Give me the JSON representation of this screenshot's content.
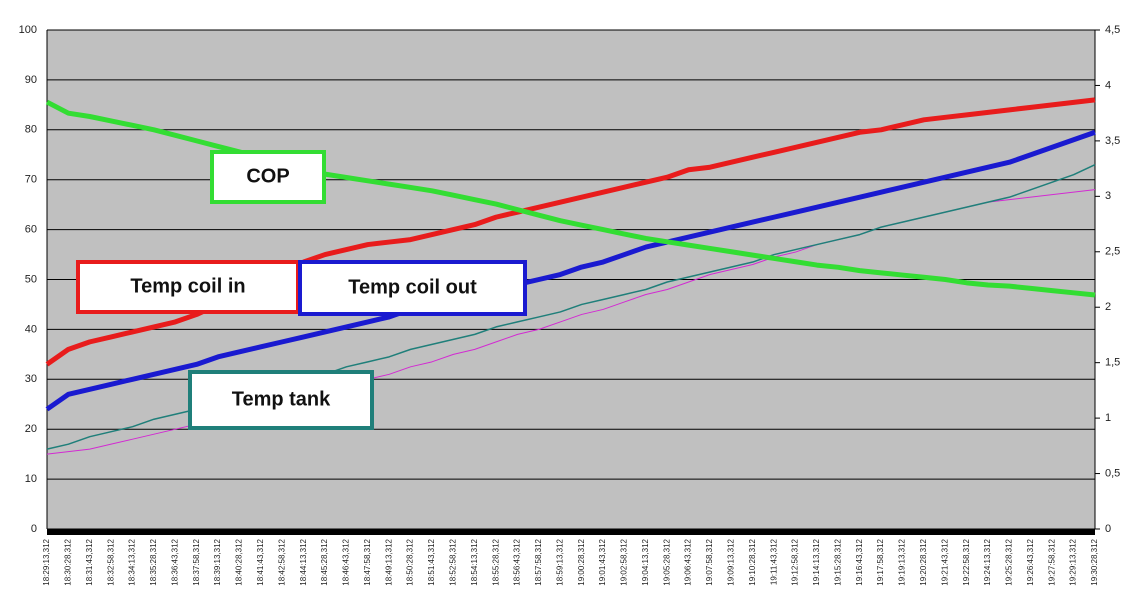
{
  "chart_data": {
    "type": "line",
    "categories": [
      "18:29:13,312",
      "18:30:28,312",
      "18:31:43,312",
      "18:32:58,312",
      "18:34:13,312",
      "18:35:28,312",
      "18:36:43,312",
      "18:37:58,312",
      "18:39:13,312",
      "18:40:28,312",
      "18:41:43,312",
      "18:42:58,312",
      "18:44:13,312",
      "18:45:28,312",
      "18:46:43,312",
      "18:47:58,312",
      "18:49:13,312",
      "18:50:28,312",
      "18:51:43,312",
      "18:52:58,312",
      "18:54:13,312",
      "18:55:28,312",
      "18:56:43,312",
      "18:57:58,312",
      "18:59:13,312",
      "19:00:28,312",
      "19:01:43,312",
      "19:02:58,312",
      "19:04:13,312",
      "19:05:28,312",
      "19:06:43,312",
      "19:07:58,312",
      "19:09:13,312",
      "19:10:28,312",
      "19:11:43,312",
      "19:12:58,312",
      "19:14:13,312",
      "19:15:28,312",
      "19:16:43,312",
      "19:17:58,312",
      "19:19:13,312",
      "19:20:28,312",
      "19:21:43,312",
      "19:22:58,312",
      "19:24:13,312",
      "19:25:28,312",
      "19:26:43,312",
      "19:27:58,312",
      "19:29:13,312",
      "19:30:28,312"
    ],
    "series": [
      {
        "name": "Temp coil in",
        "color": "#e81c1c",
        "values": [
          33,
          36,
          37.5,
          38.5,
          39.5,
          40.5,
          41.5,
          43,
          45,
          47,
          49,
          51,
          53.5,
          55,
          56,
          57,
          57.5,
          58,
          59,
          60,
          61,
          62.5,
          63.5,
          64.5,
          65.5,
          66.5,
          67.5,
          68.5,
          69.5,
          70.5,
          72,
          72.5,
          73.5,
          74.5,
          75.5,
          76.5,
          77.5,
          78.5,
          79.5,
          80,
          81,
          82,
          82.5,
          83,
          83.5,
          84,
          84.5,
          85,
          85.5,
          86
        ]
      },
      {
        "name": "Temp coil out",
        "color": "#1a1ad0",
        "values": [
          24,
          27,
          28,
          29,
          30,
          31,
          32,
          33,
          34.5,
          35.5,
          36.5,
          37.5,
          38.5,
          39.5,
          40.5,
          41.5,
          42.5,
          44,
          45,
          46,
          47,
          48,
          49,
          50,
          51,
          52.5,
          53.5,
          55,
          56.5,
          57.5,
          58.5,
          59.5,
          60.5,
          61.5,
          62.5,
          63.5,
          64.5,
          65.5,
          66.5,
          67.5,
          68.5,
          69.5,
          70.5,
          71.5,
          72.5,
          73.5,
          75,
          76.5,
          78,
          79.5
        ]
      },
      {
        "name": "COP",
        "color": "#33dd33",
        "axis": "y2",
        "values": [
          3.85,
          3.75,
          3.72,
          3.68,
          3.64,
          3.6,
          3.55,
          3.5,
          3.45,
          3.4,
          3.35,
          3.3,
          3.25,
          3.2,
          3.17,
          3.14,
          3.11,
          3.08,
          3.05,
          3.01,
          2.97,
          2.93,
          2.88,
          2.83,
          2.78,
          2.74,
          2.7,
          2.66,
          2.62,
          2.59,
          2.56,
          2.53,
          2.5,
          2.47,
          2.44,
          2.41,
          2.38,
          2.36,
          2.33,
          2.31,
          2.29,
          2.27,
          2.25,
          2.22,
          2.2,
          2.19,
          2.17,
          2.15,
          2.13,
          2.11
        ]
      },
      {
        "name": "Temp tank",
        "color": "#1f7f7a",
        "values": [
          16,
          17,
          18.5,
          19.5,
          20.5,
          22,
          23,
          24,
          25.5,
          26.5,
          27.5,
          29,
          30,
          31,
          32.5,
          33.5,
          34.5,
          36,
          37,
          38,
          39,
          40.5,
          41.5,
          42.5,
          43.5,
          45,
          46,
          47,
          48,
          49.5,
          50.5,
          51.5,
          52.5,
          53.5,
          55,
          56,
          57,
          58,
          59,
          60.5,
          61.5,
          62.5,
          63.5,
          64.5,
          65.5,
          66.5,
          68,
          69.5,
          71,
          73
        ]
      },
      {
        "color": "#d22ad2",
        "values": [
          15,
          15.5,
          16,
          17,
          18,
          19,
          20,
          21,
          22,
          23,
          24,
          25.5,
          26.5,
          27.5,
          29,
          30,
          31,
          32.5,
          33.5,
          35,
          36,
          37.5,
          39,
          40,
          41.5,
          43,
          44,
          45.5,
          47,
          48,
          49.5,
          51,
          52,
          53,
          54.5,
          55.5,
          57,
          58,
          59,
          60.5,
          61.5,
          62.5,
          63.5,
          64.5,
          65.5,
          66,
          66.5,
          67,
          67.5,
          68
        ]
      }
    ],
    "ylim": [
      0,
      100
    ],
    "yticks": [
      0,
      10,
      20,
      30,
      40,
      50,
      60,
      70,
      80,
      90,
      100
    ],
    "y2lim": [
      0,
      4.5
    ],
    "y2ticks": [
      0,
      {
        "value": 0.5,
        "label": "0,5"
      },
      1,
      {
        "value": 1.5,
        "label": "1,5"
      },
      2,
      {
        "value": 2.5,
        "label": "2,5"
      },
      3,
      {
        "value": 3.5,
        "label": "3,5"
      },
      4,
      {
        "value": 4.5,
        "label": "4,5"
      }
    ],
    "grid": true
  }
}
